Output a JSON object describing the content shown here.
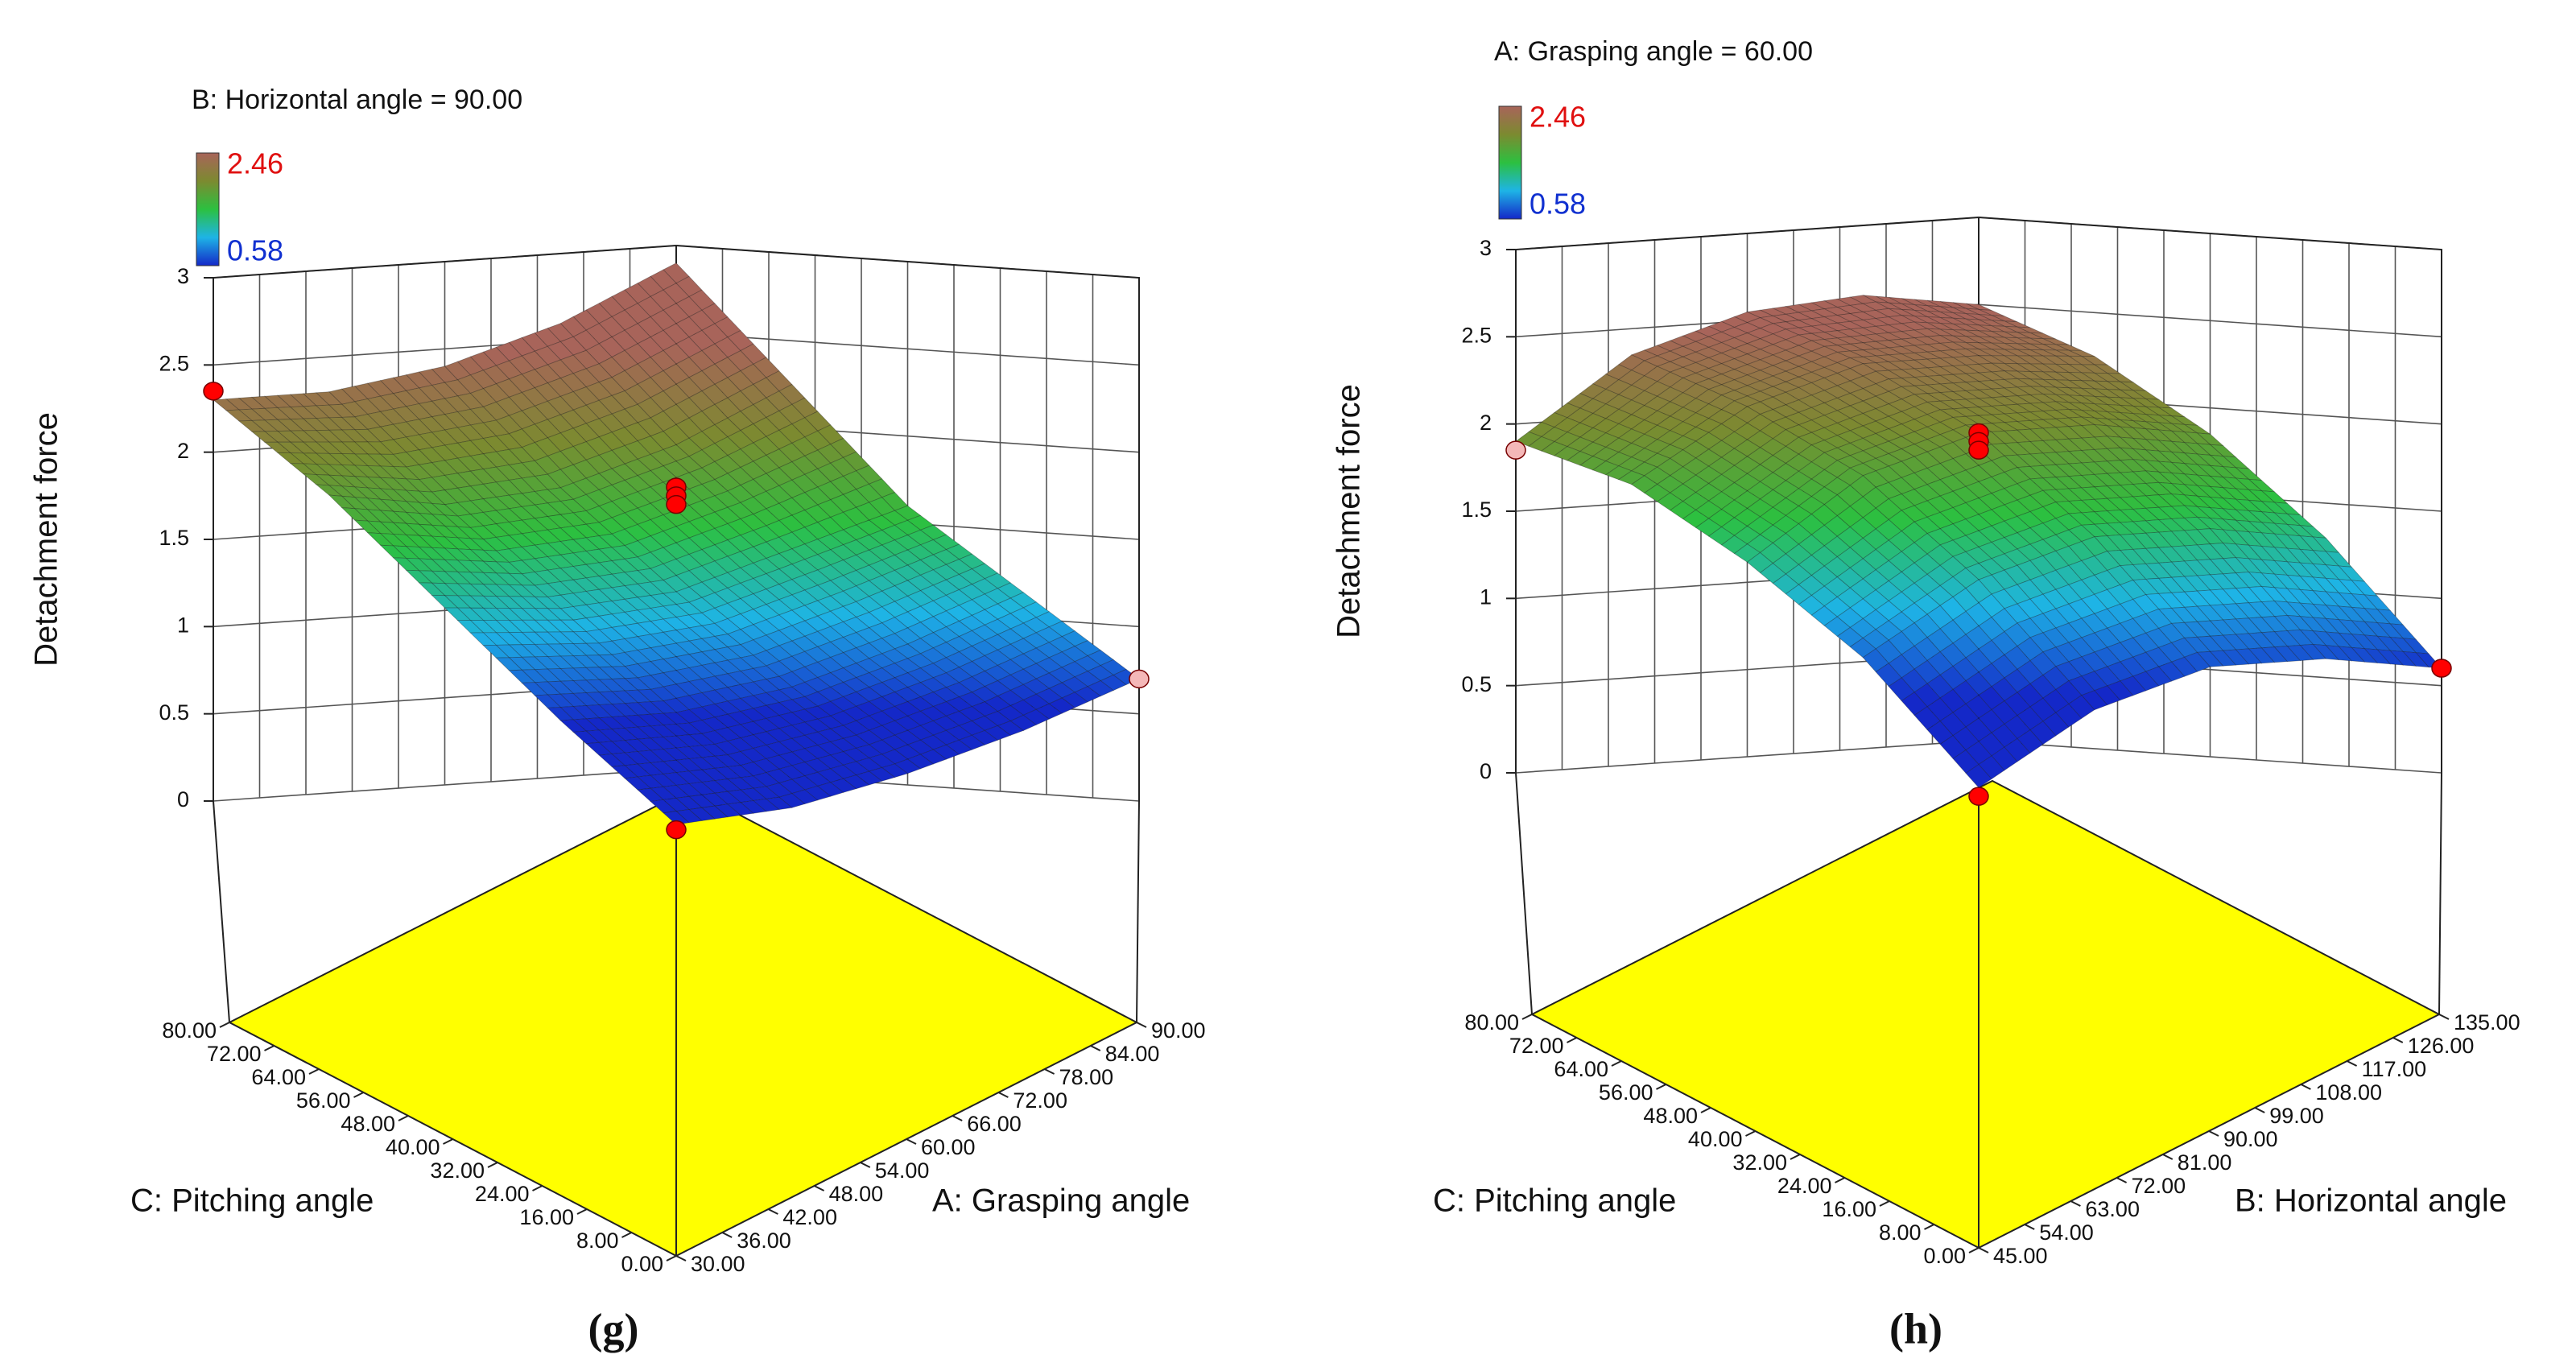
{
  "chart_data": [
    {
      "type": "surface",
      "title": "B: Horizontal angle = 90.00",
      "panel_label": "(g)",
      "colorbar": {
        "max": 2.46,
        "min": 0.58
      },
      "colormap": [
        "#1428c8",
        "#1eb4e6",
        "#2cc040",
        "#7c8a30",
        "#a8645a"
      ],
      "floor_color": "#ffff00",
      "xlabel": "A: Grasping angle",
      "ylabel": "C: Pitching angle",
      "zlabel": "Detachment force",
      "x": [
        30,
        45,
        60,
        75,
        90
      ],
      "y": [
        0,
        20,
        40,
        60,
        80
      ],
      "z": [
        [
          0.05,
          0.1,
          0.25,
          0.45,
          0.7
        ],
        [
          0.6,
          0.6,
          0.7,
          0.9,
          1.15
        ],
        [
          1.2,
          1.15,
          1.2,
          1.4,
          1.6
        ],
        [
          1.8,
          1.7,
          1.75,
          1.95,
          2.25
        ],
        [
          2.3,
          2.3,
          2.4,
          2.6,
          2.9
        ]
      ],
      "xlim": [
        30,
        90
      ],
      "ylim": [
        0,
        80
      ],
      "zlim": [
        0,
        3
      ],
      "xticks": [
        {
          "value": 30,
          "label": "30.00"
        },
        {
          "value": 36,
          "label": "36.00"
        },
        {
          "value": 42,
          "label": "42.00"
        },
        {
          "value": 48,
          "label": "48.00"
        },
        {
          "value": 54,
          "label": "54.00"
        },
        {
          "value": 60,
          "label": "60.00"
        },
        {
          "value": 66,
          "label": "66.00"
        },
        {
          "value": 72,
          "label": "72.00"
        },
        {
          "value": 78,
          "label": "78.00"
        },
        {
          "value": 84,
          "label": "84.00"
        },
        {
          "value": 90,
          "label": "90.00"
        }
      ],
      "yticks": [
        {
          "value": 0,
          "label": "0.00"
        },
        {
          "value": 8,
          "label": "8.00"
        },
        {
          "value": 16,
          "label": "16.00"
        },
        {
          "value": 24,
          "label": "24.00"
        },
        {
          "value": 32,
          "label": "32.00"
        },
        {
          "value": 40,
          "label": "40.00"
        },
        {
          "value": 48,
          "label": "48.00"
        },
        {
          "value": 56,
          "label": "56.00"
        },
        {
          "value": 64,
          "label": "64.00"
        },
        {
          "value": 72,
          "label": "72.00"
        },
        {
          "value": 80,
          "label": "80.00"
        }
      ],
      "zticks": [
        0,
        0.5,
        1,
        1.5,
        2,
        2.5,
        3
      ],
      "points": {
        "x": [
          30,
          30,
          90,
          60,
          60,
          60
        ],
        "y": [
          0,
          80,
          0,
          40,
          40,
          40
        ],
        "z": [
          0.02,
          2.35,
          0.7,
          1.8,
          1.75,
          1.7
        ],
        "colors": [
          "#ff0000",
          "#ff0000",
          "#f4b8b8",
          "#ff0000",
          "#ff0000",
          "#ff0000"
        ]
      }
    },
    {
      "type": "surface",
      "title": "A: Grasping angle = 60.00",
      "panel_label": "(h)",
      "colorbar": {
        "max": 2.46,
        "min": 0.58
      },
      "colormap": [
        "#1428c8",
        "#1eb4e6",
        "#2cc040",
        "#7c8a30",
        "#a8645a"
      ],
      "floor_color": "#ffff00",
      "xlabel": "B: Horizontal angle",
      "ylabel": "C: Pitching angle",
      "zlabel": "Detachment force",
      "x": [
        45,
        67.5,
        90,
        112.5,
        135
      ],
      "y": [
        0,
        20,
        40,
        60,
        80
      ],
      "z": [
        [
          0.1,
          0.5,
          0.7,
          0.7,
          0.6
        ],
        [
          0.8,
          1.2,
          1.4,
          1.4,
          1.3
        ],
        [
          1.3,
          1.75,
          1.95,
          1.95,
          1.85
        ],
        [
          1.7,
          2.1,
          2.3,
          2.3,
          2.25
        ],
        [
          1.9,
          2.35,
          2.55,
          2.6,
          2.5
        ]
      ],
      "xlim": [
        45,
        135
      ],
      "ylim": [
        0,
        80
      ],
      "zlim": [
        0,
        3
      ],
      "xticks": [
        {
          "value": 45,
          "label": "45.00"
        },
        {
          "value": 54,
          "label": "54.00"
        },
        {
          "value": 63,
          "label": "63.00"
        },
        {
          "value": 72,
          "label": "72.00"
        },
        {
          "value": 81,
          "label": "81.00"
        },
        {
          "value": 90,
          "label": "90.00"
        },
        {
          "value": 99,
          "label": "99.00"
        },
        {
          "value": 108,
          "label": "108.00"
        },
        {
          "value": 117,
          "label": "117.00"
        },
        {
          "value": 126,
          "label": "126.00"
        },
        {
          "value": 135,
          "label": "135.00"
        }
      ],
      "yticks": [
        {
          "value": 0,
          "label": "0.00"
        },
        {
          "value": 8,
          "label": "8.00"
        },
        {
          "value": 16,
          "label": "16.00"
        },
        {
          "value": 24,
          "label": "24.00"
        },
        {
          "value": 32,
          "label": "32.00"
        },
        {
          "value": 40,
          "label": "40.00"
        },
        {
          "value": 48,
          "label": "48.00"
        },
        {
          "value": 56,
          "label": "56.00"
        },
        {
          "value": 64,
          "label": "64.00"
        },
        {
          "value": 72,
          "label": "72.00"
        },
        {
          "value": 80,
          "label": "80.00"
        }
      ],
      "zticks": [
        0,
        0.5,
        1,
        1.5,
        2,
        2.5,
        3
      ],
      "points": {
        "x": [
          45,
          45,
          135,
          90,
          90,
          90
        ],
        "y": [
          0,
          80,
          0,
          40,
          40,
          40
        ],
        "z": [
          0.05,
          1.85,
          0.6,
          1.95,
          1.9,
          1.85
        ],
        "colors": [
          "#ff0000",
          "#f4b8b8",
          "#ff0000",
          "#ff0000",
          "#ff0000",
          "#ff0000"
        ]
      }
    }
  ]
}
